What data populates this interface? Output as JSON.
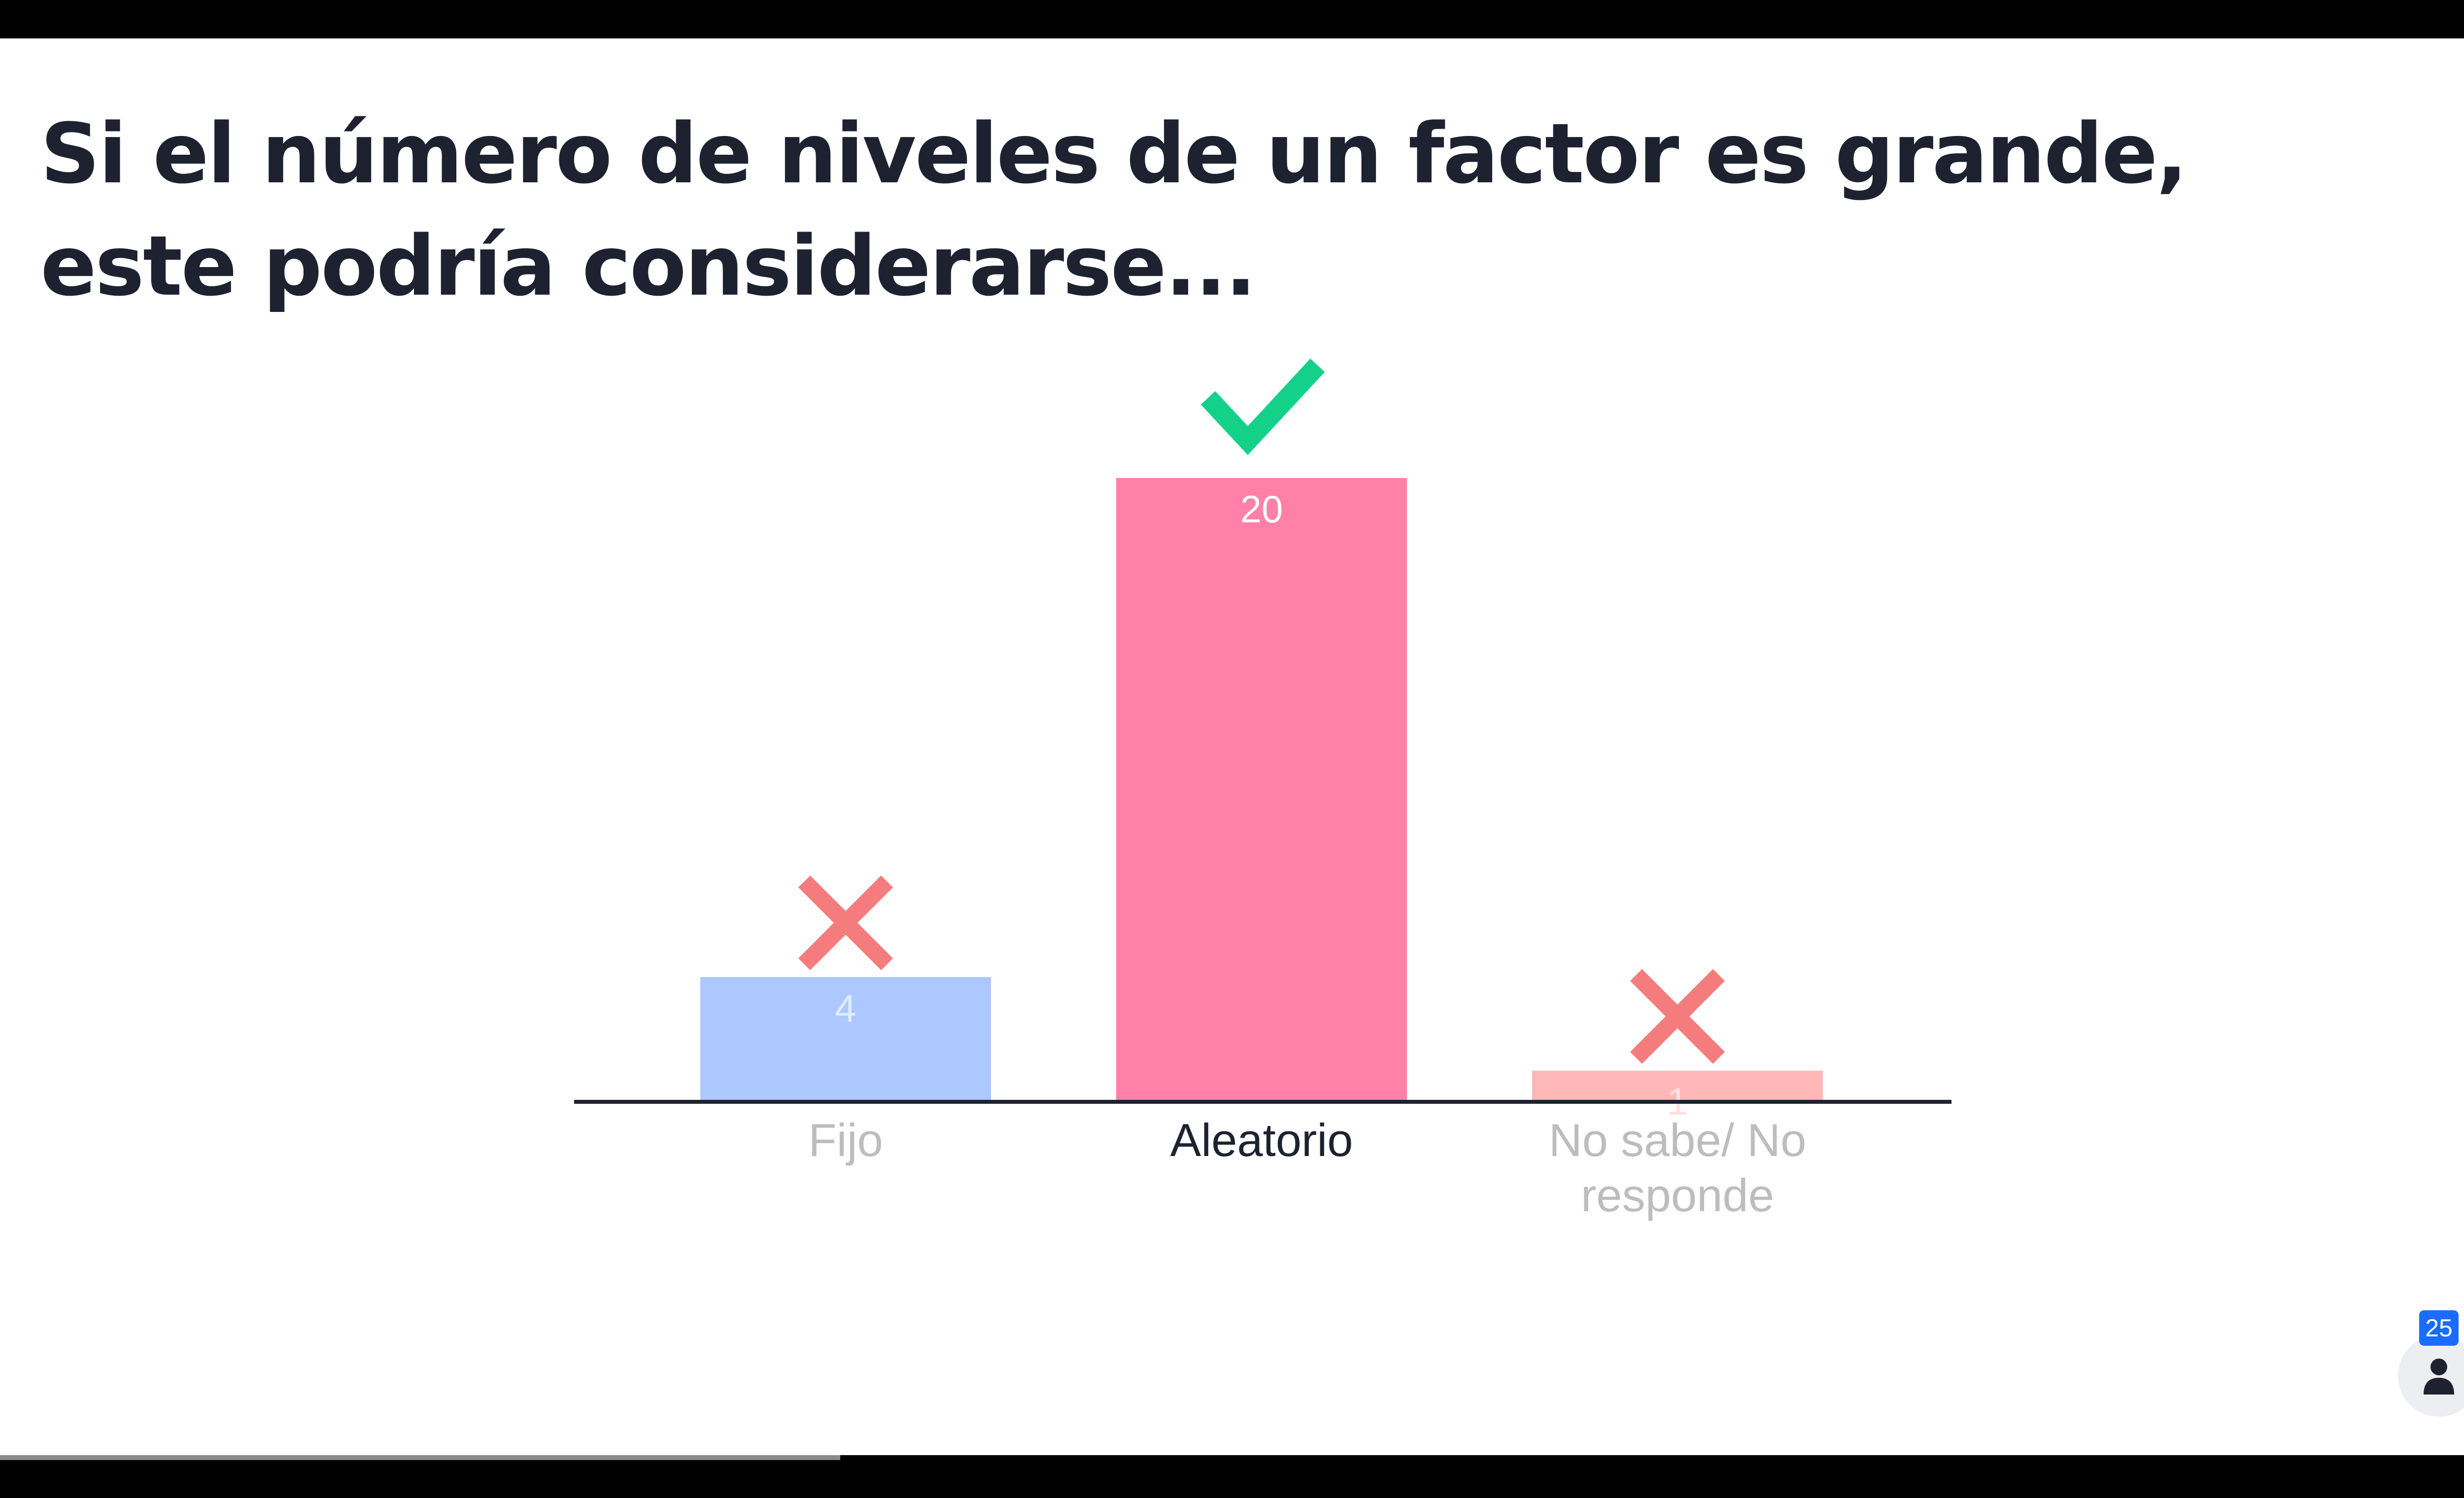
{
  "slide": {
    "title": "Si el número de niveles de un factor es grande, este podría considerarse..."
  },
  "participants": {
    "count": "25",
    "icon": "person-icon"
  },
  "progress": {
    "fraction": 0.333
  },
  "chart_data": {
    "type": "bar",
    "categories": [
      "Fijo",
      "Aleatorio",
      "No sabe/ No responde"
    ],
    "category_lines": [
      [
        "Fijo"
      ],
      [
        "Aleatorio"
      ],
      [
        "No sabe/ No",
        "responde"
      ]
    ],
    "values": [
      4,
      20,
      1
    ],
    "ylim": [
      0,
      20
    ],
    "correct": [
      false,
      true,
      false
    ],
    "bar_colors": [
      "#adc8ff",
      "#ff80a9",
      "#ffb8b8"
    ],
    "label_colors": [
      "#bdbdbd",
      "#1e2230",
      "#bdbdbd"
    ],
    "value_label_colors": [
      "#e2ebff",
      "#ffffff",
      "#ffe0e0"
    ],
    "marker_icons": [
      "cross-icon",
      "check-icon",
      "cross-icon"
    ],
    "check_color": "#14d18a",
    "cross_color": "#f57c7c",
    "axis_color": "#1e2230",
    "grid": false,
    "title": "",
    "xlabel": "",
    "ylabel": ""
  }
}
